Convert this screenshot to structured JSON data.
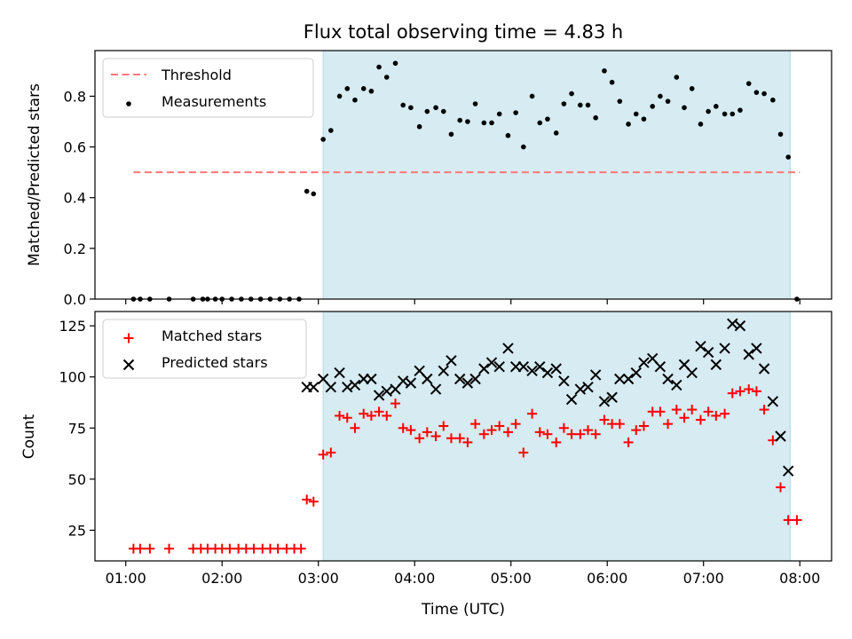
{
  "chart_data": [
    {
      "type": "scatter",
      "title": "Flux total observing time = 4.83 h",
      "xlabel": "",
      "ylabel": "Matched/Predicted stars",
      "xlim": [
        0.68,
        8.33
      ],
      "ylim": [
        0.0,
        0.98
      ],
      "xticks": [
        1,
        2,
        3,
        4,
        5,
        6,
        7,
        8
      ],
      "xticklabels": [
        "01:00",
        "02:00",
        "03:00",
        "04:00",
        "05:00",
        "06:00",
        "07:00",
        "08:00"
      ],
      "yticks": [
        0.0,
        0.2,
        0.4,
        0.6,
        0.8
      ],
      "yticklabels": [
        "0.0",
        "0.2",
        "0.4",
        "0.6",
        "0.8"
      ],
      "legend": "upper-left",
      "shaded_interval": [
        3.05,
        7.9
      ],
      "threshold": {
        "name": "Threshold",
        "y": 0.5,
        "x": [
          1.08,
          8.0
        ],
        "color": "#ff7777",
        "style": "dashed"
      },
      "series": [
        {
          "name": "Measurements",
          "marker": "dot",
          "color": "#000000",
          "points": [
            [
              1.08,
              0.0
            ],
            [
              1.15,
              0.0
            ],
            [
              1.25,
              0.0
            ],
            [
              1.45,
              0.0
            ],
            [
              1.7,
              0.0
            ],
            [
              1.8,
              0.0
            ],
            [
              1.85,
              0.0
            ],
            [
              1.93,
              0.0
            ],
            [
              2.0,
              0.0
            ],
            [
              2.1,
              0.0
            ],
            [
              2.2,
              0.0
            ],
            [
              2.3,
              0.0
            ],
            [
              2.4,
              0.0
            ],
            [
              2.5,
              0.0
            ],
            [
              2.6,
              0.0
            ],
            [
              2.7,
              0.0
            ],
            [
              2.8,
              0.0
            ],
            [
              2.88,
              0.425
            ],
            [
              2.95,
              0.415
            ],
            [
              3.05,
              0.63
            ],
            [
              3.13,
              0.665
            ],
            [
              3.22,
              0.8
            ],
            [
              3.3,
              0.83
            ],
            [
              3.38,
              0.785
            ],
            [
              3.47,
              0.83
            ],
            [
              3.55,
              0.82
            ],
            [
              3.63,
              0.915
            ],
            [
              3.71,
              0.875
            ],
            [
              3.8,
              0.93
            ],
            [
              3.88,
              0.765
            ],
            [
              3.96,
              0.755
            ],
            [
              4.05,
              0.68
            ],
            [
              4.13,
              0.74
            ],
            [
              4.22,
              0.755
            ],
            [
              4.3,
              0.74
            ],
            [
              4.38,
              0.65
            ],
            [
              4.47,
              0.705
            ],
            [
              4.55,
              0.7
            ],
            [
              4.63,
              0.77
            ],
            [
              4.72,
              0.695
            ],
            [
              4.8,
              0.695
            ],
            [
              4.88,
              0.73
            ],
            [
              4.97,
              0.645
            ],
            [
              5.05,
              0.735
            ],
            [
              5.13,
              0.6
            ],
            [
              5.22,
              0.8
            ],
            [
              5.3,
              0.695
            ],
            [
              5.38,
              0.71
            ],
            [
              5.47,
              0.655
            ],
            [
              5.55,
              0.77
            ],
            [
              5.63,
              0.81
            ],
            [
              5.72,
              0.765
            ],
            [
              5.8,
              0.765
            ],
            [
              5.88,
              0.715
            ],
            [
              5.97,
              0.9
            ],
            [
              6.05,
              0.855
            ],
            [
              6.13,
              0.78
            ],
            [
              6.22,
              0.69
            ],
            [
              6.3,
              0.73
            ],
            [
              6.38,
              0.71
            ],
            [
              6.47,
              0.76
            ],
            [
              6.55,
              0.8
            ],
            [
              6.63,
              0.78
            ],
            [
              6.72,
              0.875
            ],
            [
              6.8,
              0.755
            ],
            [
              6.88,
              0.83
            ],
            [
              6.97,
              0.69
            ],
            [
              7.05,
              0.74
            ],
            [
              7.13,
              0.76
            ],
            [
              7.22,
              0.73
            ],
            [
              7.3,
              0.73
            ],
            [
              7.38,
              0.745
            ],
            [
              7.47,
              0.85
            ],
            [
              7.55,
              0.815
            ],
            [
              7.63,
              0.81
            ],
            [
              7.72,
              0.785
            ],
            [
              7.8,
              0.65
            ],
            [
              7.88,
              0.56
            ],
            [
              7.97,
              0.0
            ]
          ]
        }
      ]
    },
    {
      "type": "scatter",
      "title": "",
      "xlabel": "Time (UTC)",
      "ylabel": "Count",
      "xlim": [
        0.68,
        8.33
      ],
      "ylim": [
        10,
        132
      ],
      "xticks": [
        1,
        2,
        3,
        4,
        5,
        6,
        7,
        8
      ],
      "xticklabels": [
        "01:00",
        "02:00",
        "03:00",
        "04:00",
        "05:00",
        "06:00",
        "07:00",
        "08:00"
      ],
      "yticks": [
        25,
        50,
        75,
        100,
        125
      ],
      "yticklabels": [
        "25",
        "50",
        "75",
        "100",
        "125"
      ],
      "legend": "upper-left",
      "shaded_interval": [
        3.05,
        7.9
      ],
      "series": [
        {
          "name": "Matched stars",
          "marker": "plus",
          "color": "#ff0000",
          "points": [
            [
              1.08,
              16
            ],
            [
              1.15,
              16
            ],
            [
              1.25,
              16
            ],
            [
              1.45,
              16
            ],
            [
              1.7,
              16
            ],
            [
              1.78,
              16
            ],
            [
              1.85,
              16
            ],
            [
              1.93,
              16
            ],
            [
              2.0,
              16
            ],
            [
              2.08,
              16
            ],
            [
              2.17,
              16
            ],
            [
              2.25,
              16
            ],
            [
              2.33,
              16
            ],
            [
              2.42,
              16
            ],
            [
              2.5,
              16
            ],
            [
              2.58,
              16
            ],
            [
              2.67,
              16
            ],
            [
              2.75,
              16
            ],
            [
              2.82,
              16
            ],
            [
              2.88,
              40
            ],
            [
              2.95,
              39
            ],
            [
              3.05,
              62
            ],
            [
              3.13,
              63
            ],
            [
              3.22,
              81
            ],
            [
              3.3,
              80
            ],
            [
              3.38,
              75
            ],
            [
              3.47,
              82
            ],
            [
              3.55,
              81
            ],
            [
              3.63,
              83
            ],
            [
              3.71,
              81
            ],
            [
              3.8,
              87
            ],
            [
              3.88,
              75
            ],
            [
              3.96,
              74
            ],
            [
              4.05,
              70
            ],
            [
              4.13,
              73
            ],
            [
              4.22,
              71
            ],
            [
              4.3,
              76
            ],
            [
              4.38,
              70
            ],
            [
              4.47,
              70
            ],
            [
              4.55,
              68
            ],
            [
              4.63,
              77
            ],
            [
              4.72,
              72
            ],
            [
              4.8,
              74
            ],
            [
              4.88,
              76
            ],
            [
              4.97,
              73
            ],
            [
              5.05,
              77
            ],
            [
              5.13,
              63
            ],
            [
              5.22,
              82
            ],
            [
              5.3,
              73
            ],
            [
              5.38,
              72
            ],
            [
              5.47,
              68
            ],
            [
              5.55,
              75
            ],
            [
              5.63,
              72
            ],
            [
              5.72,
              72
            ],
            [
              5.8,
              74
            ],
            [
              5.88,
              72
            ],
            [
              5.97,
              79
            ],
            [
              6.05,
              77
            ],
            [
              6.13,
              77
            ],
            [
              6.22,
              68
            ],
            [
              6.3,
              74
            ],
            [
              6.38,
              76
            ],
            [
              6.47,
              83
            ],
            [
              6.55,
              83
            ],
            [
              6.63,
              77
            ],
            [
              6.72,
              84
            ],
            [
              6.8,
              80
            ],
            [
              6.88,
              84
            ],
            [
              6.97,
              79
            ],
            [
              7.05,
              83
            ],
            [
              7.13,
              81
            ],
            [
              7.22,
              82
            ],
            [
              7.3,
              92
            ],
            [
              7.38,
              93
            ],
            [
              7.47,
              94
            ],
            [
              7.55,
              93
            ],
            [
              7.63,
              84
            ],
            [
              7.72,
              69
            ],
            [
              7.8,
              46
            ],
            [
              7.88,
              30
            ],
            [
              7.97,
              30
            ]
          ]
        },
        {
          "name": "Predicted stars",
          "marker": "x",
          "color": "#000000",
          "points": [
            [
              2.88,
              95
            ],
            [
              2.95,
              95
            ],
            [
              3.05,
              99
            ],
            [
              3.13,
              95
            ],
            [
              3.22,
              102
            ],
            [
              3.3,
              95
            ],
            [
              3.38,
              96
            ],
            [
              3.47,
              99
            ],
            [
              3.55,
              99
            ],
            [
              3.63,
              91
            ],
            [
              3.71,
              93
            ],
            [
              3.8,
              94
            ],
            [
              3.88,
              98
            ],
            [
              3.96,
              97
            ],
            [
              4.05,
              103
            ],
            [
              4.13,
              99
            ],
            [
              4.22,
              94
            ],
            [
              4.3,
              103
            ],
            [
              4.38,
              108
            ],
            [
              4.47,
              99
            ],
            [
              4.55,
              97
            ],
            [
              4.63,
              99
            ],
            [
              4.72,
              104
            ],
            [
              4.8,
              107
            ],
            [
              4.88,
              105
            ],
            [
              4.97,
              114
            ],
            [
              5.05,
              105
            ],
            [
              5.13,
              105
            ],
            [
              5.22,
              103
            ],
            [
              5.3,
              105
            ],
            [
              5.38,
              102
            ],
            [
              5.47,
              104
            ],
            [
              5.55,
              98
            ],
            [
              5.63,
              89
            ],
            [
              5.72,
              94
            ],
            [
              5.8,
              95
            ],
            [
              5.88,
              101
            ],
            [
              5.97,
              88
            ],
            [
              6.05,
              90
            ],
            [
              6.13,
              99
            ],
            [
              6.22,
              99
            ],
            [
              6.3,
              102
            ],
            [
              6.38,
              107
            ],
            [
              6.47,
              109
            ],
            [
              6.55,
              105
            ],
            [
              6.63,
              99
            ],
            [
              6.72,
              96
            ],
            [
              6.8,
              106
            ],
            [
              6.88,
              102
            ],
            [
              6.97,
              115
            ],
            [
              7.05,
              112
            ],
            [
              7.13,
              106
            ],
            [
              7.22,
              114
            ],
            [
              7.3,
              126
            ],
            [
              7.38,
              125
            ],
            [
              7.47,
              111
            ],
            [
              7.55,
              114
            ],
            [
              7.63,
              104
            ],
            [
              7.72,
              88
            ],
            [
              7.8,
              71
            ],
            [
              7.88,
              54
            ]
          ]
        }
      ]
    }
  ]
}
